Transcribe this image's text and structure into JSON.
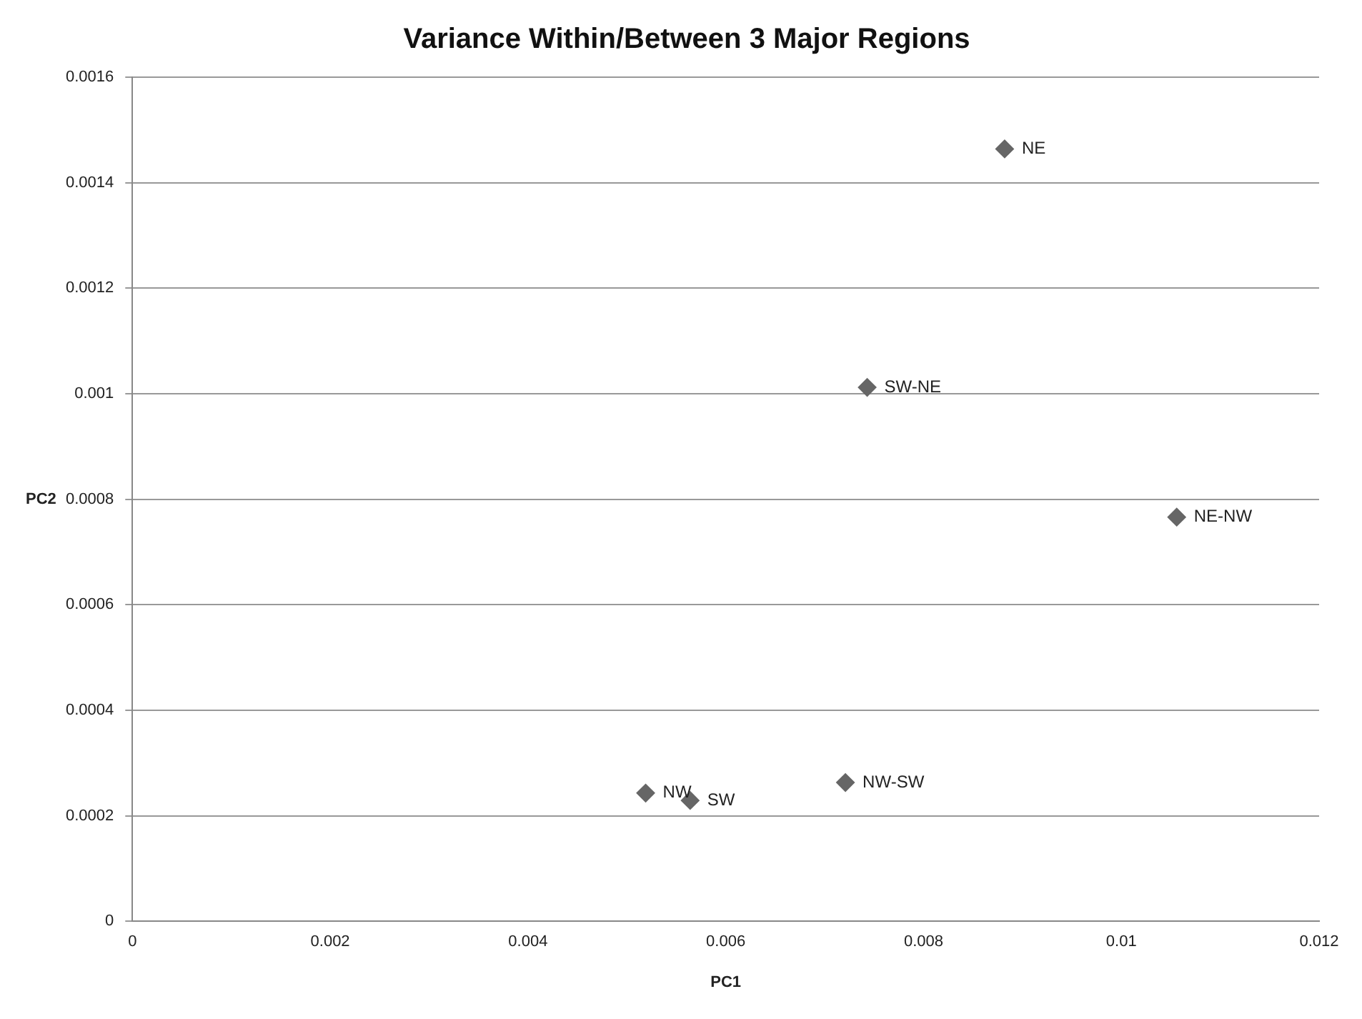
{
  "chart_data": {
    "type": "scatter",
    "title": "Variance Within/Between 3 Major Regions",
    "xlabel": "PC1",
    "ylabel": "PC2",
    "series": [
      {
        "color": "#666666",
        "x": [
          0.00882,
          0.00743,
          0.01056,
          0.00519,
          0.00564,
          0.00721
        ],
        "values": [
          0.001464,
          0.001012,
          0.000766,
          0.000243,
          0.000229,
          0.000263
        ],
        "value_labels": [
          "NE",
          "SW-NE",
          "NE-NW",
          "NW",
          "SW",
          "NW-SW"
        ]
      }
    ],
    "xlim": [
      0,
      0.012
    ],
    "xticks": [
      0,
      0.002,
      0.004,
      0.006,
      0.008,
      0.01,
      0.012
    ],
    "ylim": [
      0,
      0.0016
    ],
    "yticks": [
      0,
      0.0002,
      0.0004,
      0.0006,
      0.0008,
      0.001,
      0.0012,
      0.0014,
      0.0016
    ],
    "grid": "y",
    "legend": false,
    "marker": "diamond"
  }
}
